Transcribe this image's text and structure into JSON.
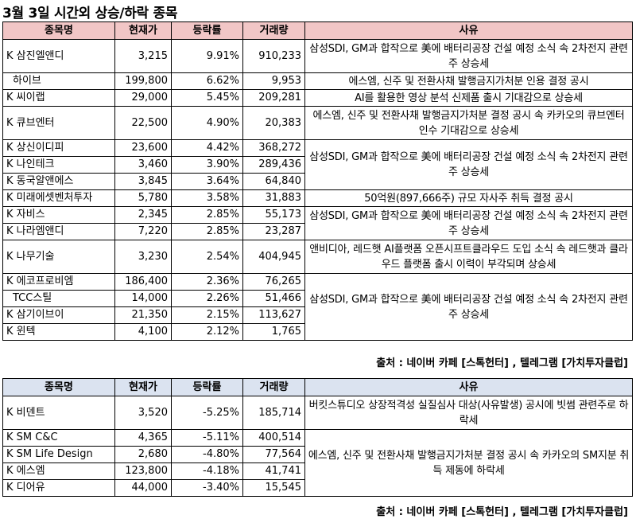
{
  "title": "3월 3일  시간외 상승/하락 종목",
  "headers": {
    "name": "종목명",
    "price": "현재가",
    "change": "등락률",
    "volume": "거래량",
    "reason": "사유"
  },
  "source": "출처 : 네이버 카페 [스톡헌터] , 텔레그램 [가치투자클럽]",
  "up": {
    "rows": [
      {
        "name": "K 삼진엘앤디",
        "price": "3,215",
        "change": "9.91%",
        "volume": "910,233"
      },
      {
        "name": "하이브",
        "price": "199,800",
        "change": "6.62%",
        "volume": "9,953"
      },
      {
        "name": "K 씨이랩",
        "price": "29,000",
        "change": "5.45%",
        "volume": "209,281"
      },
      {
        "name": "K 큐브엔터",
        "price": "22,500",
        "change": "4.90%",
        "volume": "20,383"
      },
      {
        "name": "K 상신이디피",
        "price": "23,600",
        "change": "4.42%",
        "volume": "368,272"
      },
      {
        "name": "K 나인테크",
        "price": "3,460",
        "change": "3.90%",
        "volume": "289,436"
      },
      {
        "name": "K 동국알앤에스",
        "price": "3,845",
        "change": "3.64%",
        "volume": "64,840"
      },
      {
        "name": "K 미래에셋벤처투자",
        "price": "5,780",
        "change": "3.58%",
        "volume": "31,883"
      },
      {
        "name": "K 자비스",
        "price": "2,345",
        "change": "2.85%",
        "volume": "55,173"
      },
      {
        "name": "K 나라엠앤디",
        "price": "7,220",
        "change": "2.85%",
        "volume": "23,287"
      },
      {
        "name": "K 나무기술",
        "price": "3,230",
        "change": "2.54%",
        "volume": "404,945"
      },
      {
        "name": "K 에코프로비엠",
        "price": "186,400",
        "change": "2.36%",
        "volume": "76,265"
      },
      {
        "name": "TCC스틸",
        "price": "14,000",
        "change": "2.26%",
        "volume": "51,466"
      },
      {
        "name": "K 삼기이브이",
        "price": "21,350",
        "change": "2.15%",
        "volume": "113,627"
      },
      {
        "name": "K 윈텍",
        "price": "4,100",
        "change": "2.12%",
        "volume": "1,765"
      }
    ],
    "reasons": [
      "삼성SDI, GM과 합작으로 美에 배터리공장 건설 예정 소식 속 2차전지 관련주 상승세",
      "에스엠, 신주 및 전환사채 발행금지가처분 인용 결정 공시",
      "AI를 활용한 영상 분석 신제품 출시 기대감으로 상승세",
      "에스엠, 신주 및 전환사채 발행금지가처분 결정 공시 속 카카오의 큐브엔터 인수 기대감으로 상승세",
      "삼성SDI, GM과 합작으로 美에 배터리공장 건설 예정 소식 속 2차전지 관련주 상승세",
      "50억원(897,666주) 규모 자사주 취득 결정 공시",
      "삼성SDI, GM과 합작으로 美에 배터리공장 건설 예정 소식 속 2차전지 관련주 상승세",
      "앤비디아, 레드햇 AI플랫폼 오픈시프트클라우드 도입 소식 속 레드햇과 클라우드 플랫폼 출시 이력이 부각되며 상승세",
      "삼성SDI, GM과 합작으로 美에 배터리공장 건설 예정 소식 속 2차전지 관련주 상승세"
    ]
  },
  "down": {
    "rows": [
      {
        "name": "K 비덴트",
        "price": "3,520",
        "change": "-5.25%",
        "volume": "185,714"
      },
      {
        "name": "K SM C&C",
        "price": "4,365",
        "change": "-5.11%",
        "volume": "400,514"
      },
      {
        "name": "K SM Life Design",
        "price": "2,680",
        "change": "-4.80%",
        "volume": "77,564"
      },
      {
        "name": "K 에스엠",
        "price": "123,800",
        "change": "-4.18%",
        "volume": "41,741"
      },
      {
        "name": "K 디어유",
        "price": "44,000",
        "change": "-3.40%",
        "volume": "15,545"
      }
    ],
    "reasons": [
      "버킷스튜디오 상장적격성 실질심사 대상(사유발생) 공시에 빗썸 관련주로 하락세",
      "에스엠, 신주 및 전환사채 발행금지가처분 결정 공시 속 카카오의 SM지분 취득 제동에 하락세"
    ]
  }
}
